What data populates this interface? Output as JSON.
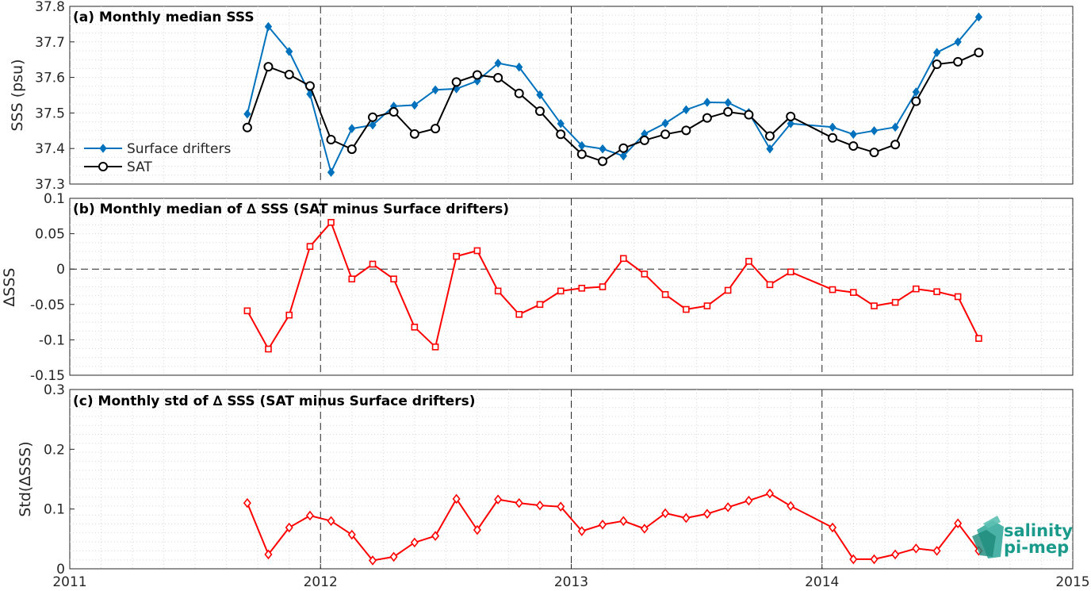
{
  "chart_data": [
    {
      "id": "a",
      "type": "line",
      "title": "(a) Monthly median SSS",
      "xlabel": "",
      "ylabel": "SSS (psu)",
      "xlim": [
        2011,
        2015
      ],
      "ylim": [
        37.3,
        37.8
      ],
      "yticks": [
        "37.3",
        "37.4",
        "37.5",
        "37.6",
        "37.7",
        "37.8"
      ],
      "grid": "minor dotted",
      "legend_position": "bottom-left",
      "series": [
        {
          "name": "Surface drifters",
          "color": "#0072BD",
          "marker": "diamond",
          "x": [
            2011.708,
            2011.792,
            2011.875,
            2011.958,
            2012.042,
            2012.125,
            2012.208,
            2012.292,
            2012.375,
            2012.458,
            2012.542,
            2012.625,
            2012.708,
            2012.792,
            2012.875,
            2012.958,
            2013.042,
            2013.125,
            2013.208,
            2013.292,
            2013.375,
            2013.458,
            2013.542,
            2013.625,
            2013.708,
            2013.792,
            2013.875,
            2014.042,
            2014.125,
            2014.208,
            2014.292,
            2014.375,
            2014.458,
            2014.542,
            2014.625
          ],
          "y": [
            37.497,
            37.743,
            37.673,
            37.553,
            37.333,
            37.456,
            37.466,
            37.519,
            37.522,
            37.565,
            37.568,
            37.59,
            37.64,
            37.629,
            37.551,
            37.47,
            37.408,
            37.399,
            37.379,
            37.441,
            37.471,
            37.509,
            37.53,
            37.529,
            37.501,
            37.399,
            37.47,
            37.46,
            37.44,
            37.45,
            37.46,
            37.559,
            37.67,
            37.7,
            37.77
          ]
        },
        {
          "name": "SAT",
          "color": "#000000",
          "marker": "circle",
          "x": [
            2011.708,
            2011.792,
            2011.875,
            2011.958,
            2012.042,
            2012.125,
            2012.208,
            2012.292,
            2012.375,
            2012.458,
            2012.542,
            2012.625,
            2012.708,
            2012.792,
            2012.875,
            2012.958,
            2013.042,
            2013.125,
            2013.208,
            2013.292,
            2013.375,
            2013.458,
            2013.542,
            2013.625,
            2013.708,
            2013.792,
            2013.875,
            2014.042,
            2014.125,
            2014.208,
            2014.292,
            2014.375,
            2014.458,
            2014.542,
            2014.625
          ],
          "y": [
            37.459,
            37.63,
            37.608,
            37.576,
            37.425,
            37.398,
            37.488,
            37.503,
            37.441,
            37.456,
            37.587,
            37.607,
            37.599,
            37.555,
            37.505,
            37.44,
            37.384,
            37.364,
            37.401,
            37.423,
            37.44,
            37.451,
            37.486,
            37.503,
            37.495,
            37.435,
            37.49,
            37.43,
            37.407,
            37.389,
            37.411,
            37.533,
            37.637,
            37.644,
            37.67
          ]
        }
      ]
    },
    {
      "id": "b",
      "type": "line",
      "title": "(b) Monthly median of ∆ SSS (SAT minus Surface drifters)",
      "xlabel": "",
      "ylabel": "∆SSS",
      "xlim": [
        2011,
        2015
      ],
      "ylim": [
        -0.15,
        0.1
      ],
      "yticks": [
        "-0.15",
        "-0.1",
        "-0.05",
        "0",
        "0.05",
        "0.1"
      ],
      "zero_line": true,
      "grid": "minor dotted",
      "series": [
        {
          "name": "",
          "color": "#ff0000",
          "marker": "square",
          "x": [
            2011.708,
            2011.792,
            2011.875,
            2011.958,
            2012.042,
            2012.125,
            2012.208,
            2012.292,
            2012.375,
            2012.458,
            2012.542,
            2012.625,
            2012.708,
            2012.792,
            2012.875,
            2012.958,
            2013.042,
            2013.125,
            2013.208,
            2013.292,
            2013.375,
            2013.458,
            2013.542,
            2013.625,
            2013.708,
            2013.792,
            2013.875,
            2014.042,
            2014.125,
            2014.208,
            2014.292,
            2014.375,
            2014.458,
            2014.542,
            2014.625
          ],
          "y": [
            -0.059,
            -0.113,
            -0.065,
            0.032,
            0.066,
            -0.014,
            0.007,
            -0.014,
            -0.082,
            -0.11,
            0.018,
            0.026,
            -0.031,
            -0.064,
            -0.05,
            -0.031,
            -0.027,
            -0.025,
            0.015,
            -0.007,
            -0.036,
            -0.057,
            -0.052,
            -0.03,
            0.011,
            -0.022,
            -0.004,
            -0.029,
            -0.033,
            -0.052,
            -0.047,
            -0.028,
            -0.032,
            -0.039,
            -0.098
          ]
        }
      ]
    },
    {
      "id": "c",
      "type": "line",
      "title": "(c) Monthly std of ∆ SSS (SAT minus Surface drifters)",
      "xlabel": "",
      "ylabel": "Std(∆SSS)",
      "xlim": [
        2011,
        2015
      ],
      "ylim": [
        0,
        0.3
      ],
      "yticks": [
        "0",
        "0.1",
        "0.2",
        "0.3"
      ],
      "xticks": [
        "2011",
        "2012",
        "2013",
        "2014",
        "2015"
      ],
      "grid": "minor dotted",
      "series": [
        {
          "name": "",
          "color": "#ff0000",
          "marker": "diamond",
          "x": [
            2011.708,
            2011.792,
            2011.875,
            2011.958,
            2012.042,
            2012.125,
            2012.208,
            2012.292,
            2012.375,
            2012.458,
            2012.542,
            2012.625,
            2012.708,
            2012.792,
            2012.875,
            2012.958,
            2013.042,
            2013.125,
            2013.208,
            2013.292,
            2013.375,
            2013.458,
            2013.542,
            2013.625,
            2013.708,
            2013.792,
            2013.875,
            2014.042,
            2014.125,
            2014.208,
            2014.292,
            2014.375,
            2014.458,
            2014.542,
            2014.625
          ],
          "y": [
            0.11,
            0.024,
            0.069,
            0.089,
            0.08,
            0.057,
            0.014,
            0.02,
            0.044,
            0.055,
            0.117,
            0.065,
            0.116,
            0.11,
            0.106,
            0.104,
            0.063,
            0.074,
            0.08,
            0.067,
            0.093,
            0.085,
            0.092,
            0.103,
            0.114,
            0.126,
            0.105,
            0.069,
            0.016,
            0.016,
            0.024,
            0.034,
            0.03,
            0.076,
            0.03
          ]
        }
      ]
    }
  ],
  "logo": {
    "line1": "salinity",
    "line2": "pi-mep",
    "color": "#1a9a8a"
  }
}
